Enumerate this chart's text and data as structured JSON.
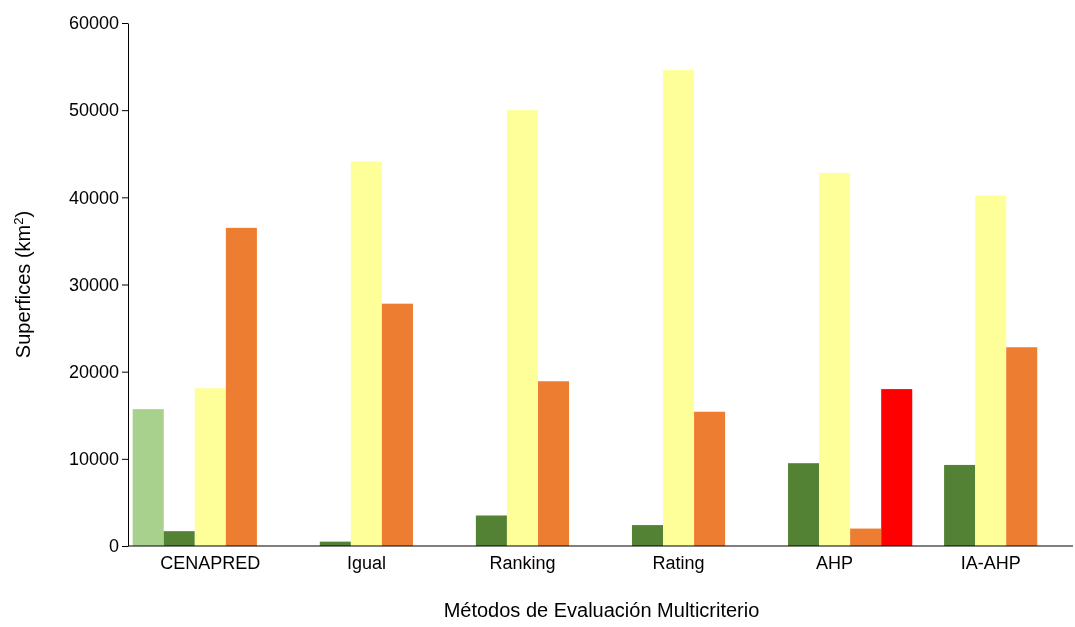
{
  "chart_data": {
    "type": "bar",
    "xlabel": "Métodos de Evaluación Multicriterio",
    "ylabel": "Superfices (km$^{2}$)",
    "categories": [
      "CENAPRED",
      "Igual",
      "Ranking",
      "Rating",
      "AHP",
      "IA-AHP"
    ],
    "series": [
      {
        "color": "#a9d18e",
        "values": [
          15700,
          null,
          null,
          null,
          null,
          null
        ]
      },
      {
        "color": "#548235",
        "values": [
          1700,
          500,
          3500,
          2400,
          9500,
          9300
        ]
      },
      {
        "color": "#ffff99",
        "values": [
          18100,
          44100,
          50000,
          54600,
          42800,
          40200
        ]
      },
      {
        "color": "#ed7d31",
        "values": [
          36500,
          27800,
          18900,
          15400,
          2000,
          22800
        ]
      },
      {
        "color": "#ff0000",
        "values": [
          null,
          null,
          null,
          null,
          18000,
          null
        ]
      }
    ],
    "ylim": [
      0,
      60000
    ],
    "yticks": [
      0,
      10000,
      20000,
      30000,
      40000,
      50000,
      60000
    ],
    "grid": false
  }
}
